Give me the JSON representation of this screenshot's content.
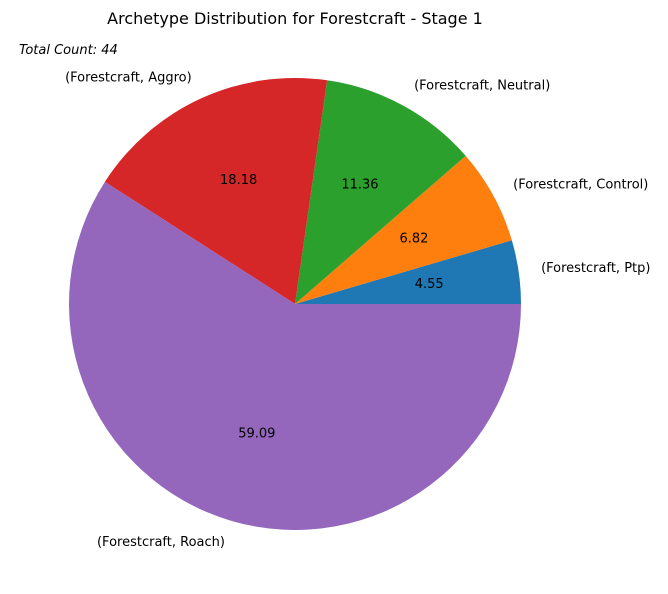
{
  "chart_data": {
    "type": "pie",
    "title": "Archetype Distribution for Forestcraft - Stage 1",
    "annotation": "Total Count: 44",
    "start_angle_deg": 0,
    "direction": "counterclockwise",
    "slices": [
      {
        "label": "(Forestcraft, Ptp)",
        "value": 4.55,
        "value_label": "4.55",
        "color": "#1f77b4"
      },
      {
        "label": "(Forestcraft, Control)",
        "value": 6.82,
        "value_label": "6.82",
        "color": "#ff7f0e"
      },
      {
        "label": "(Forestcraft, Neutral)",
        "value": 11.36,
        "value_label": "11.36",
        "color": "#2ca02c"
      },
      {
        "label": "(Forestcraft, Aggro)",
        "value": 18.18,
        "value_label": "18.18",
        "color": "#d62728"
      },
      {
        "label": "(Forestcraft, Roach)",
        "value": 59.09,
        "value_label": "59.09",
        "color": "#9467bd"
      }
    ]
  }
}
